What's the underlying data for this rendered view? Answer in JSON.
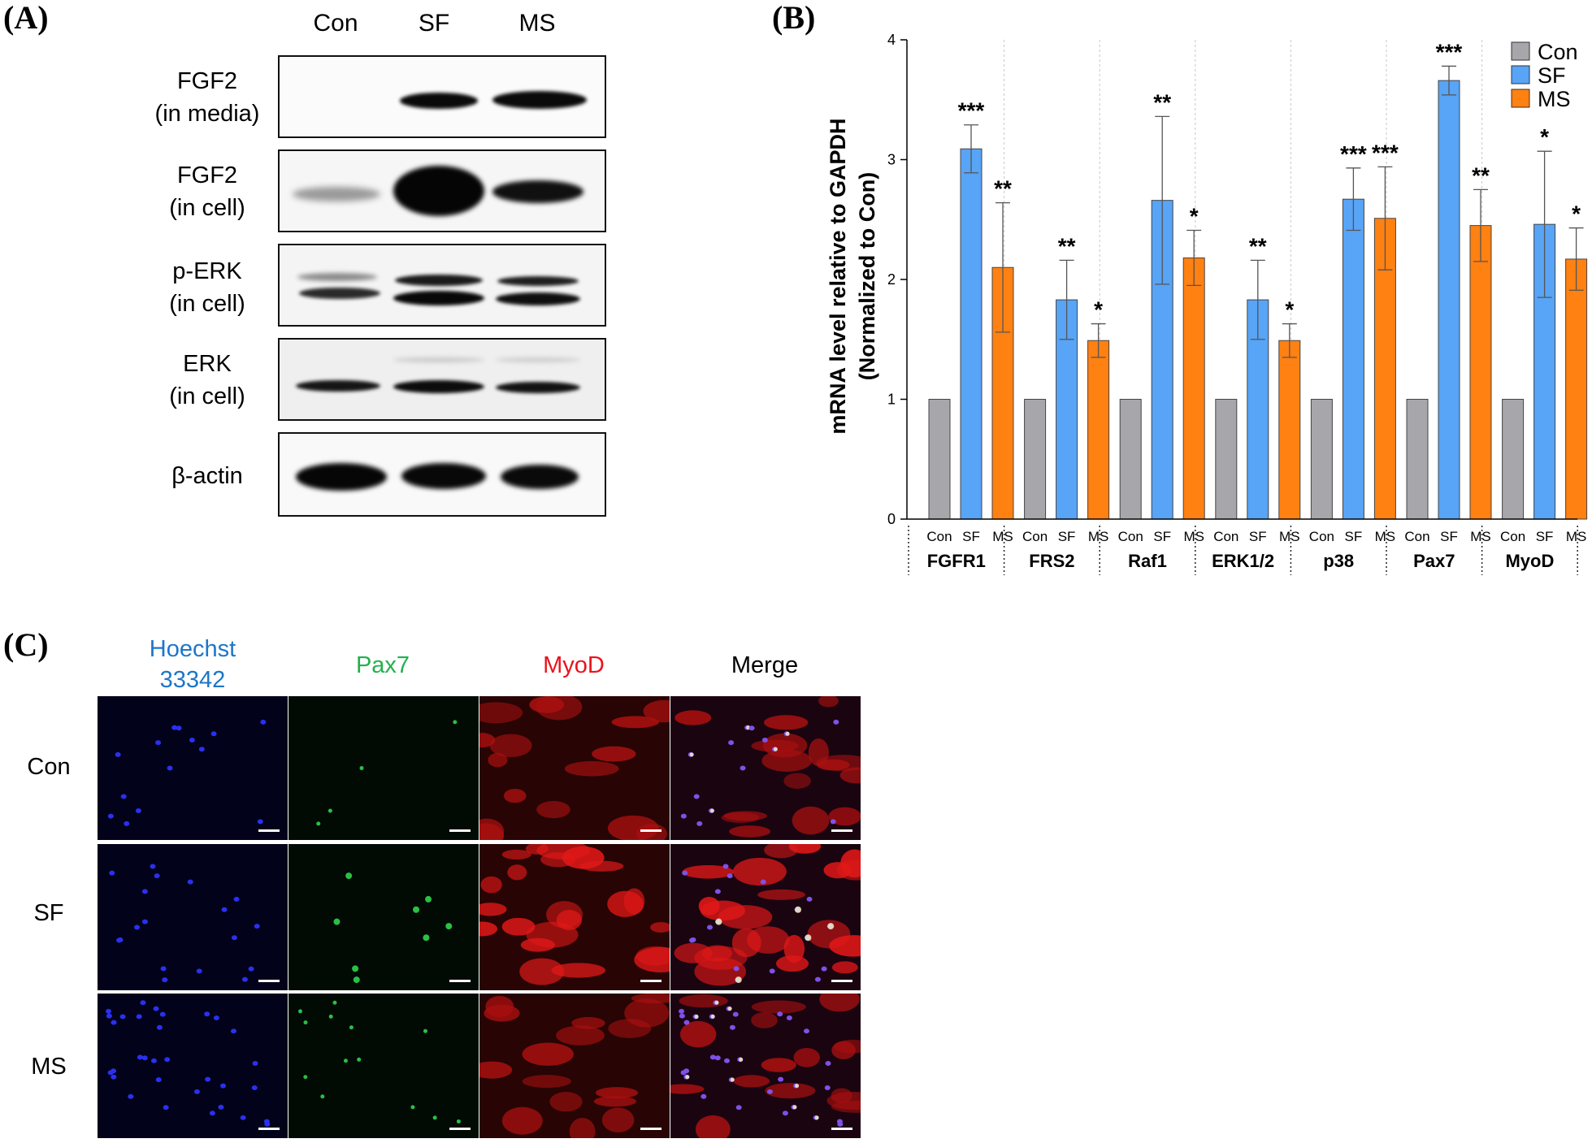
{
  "panels": {
    "a": {
      "letter": "(A)"
    },
    "b": {
      "letter": "(B)"
    },
    "c": {
      "letter": "(C)"
    }
  },
  "blot": {
    "lanes": [
      "Con",
      "SF",
      "MS"
    ],
    "rows": [
      {
        "line1": "FGF2",
        "line2": "(in media)"
      },
      {
        "line1": "FGF2",
        "line2": "(in cell)"
      },
      {
        "line1": "p-ERK",
        "line2": "(in cell)"
      },
      {
        "line1": "ERK",
        "line2": "(in cell)"
      },
      {
        "line1": "β-actin",
        "line2": ""
      }
    ]
  },
  "chart_data": {
    "type": "bar",
    "ylabel_line1": "mRNA level relative to GAPDH",
    "ylabel_line2": "(Normalized to Con)",
    "ylim": [
      0,
      4
    ],
    "yticks": [
      0,
      1,
      2,
      3,
      4
    ],
    "legend_position": "top-right",
    "groups": [
      "FGFR1",
      "FRS2",
      "Raf1",
      "ERK1/2",
      "p38",
      "Pax7",
      "MyoD"
    ],
    "conditions": [
      "Con",
      "SF",
      "MS"
    ],
    "series": [
      {
        "name": "Con",
        "color": "#a7a7ab",
        "values": [
          1,
          1,
          1,
          1,
          1,
          1,
          1
        ],
        "errors": [
          0,
          0,
          0,
          0,
          0,
          0,
          0
        ],
        "sig": [
          "",
          "",
          "",
          "",
          "",
          "",
          ""
        ]
      },
      {
        "name": "SF",
        "color": "#58a4f6",
        "values": [
          3.09,
          1.83,
          2.66,
          1.83,
          2.67,
          3.66,
          2.46
        ],
        "errors": [
          0.2,
          0.33,
          0.7,
          0.33,
          0.26,
          0.12,
          0.61
        ],
        "sig": [
          "***",
          "**",
          "**",
          "**",
          "***",
          "***",
          "*"
        ]
      },
      {
        "name": "MS",
        "color": "#ff8112",
        "values": [
          2.1,
          1.49,
          2.18,
          1.49,
          2.51,
          2.45,
          2.17
        ],
        "errors": [
          0.54,
          0.14,
          0.23,
          0.14,
          0.43,
          0.3,
          0.26
        ],
        "sig": [
          "**",
          "*",
          "*",
          "*",
          "***",
          "**",
          "*"
        ]
      }
    ]
  },
  "micro": {
    "columns": [
      {
        "line1": "Hoechst",
        "line2": "33342",
        "color": "#1d76c8"
      },
      {
        "line1": "Pax7",
        "line2": "",
        "color": "#22b14c"
      },
      {
        "line1": "MyoD",
        "line2": "",
        "color": "#e8141c"
      },
      {
        "line1": "Merge",
        "line2": "",
        "color": "#000000"
      }
    ],
    "rows": [
      "Con",
      "SF",
      "MS"
    ]
  }
}
